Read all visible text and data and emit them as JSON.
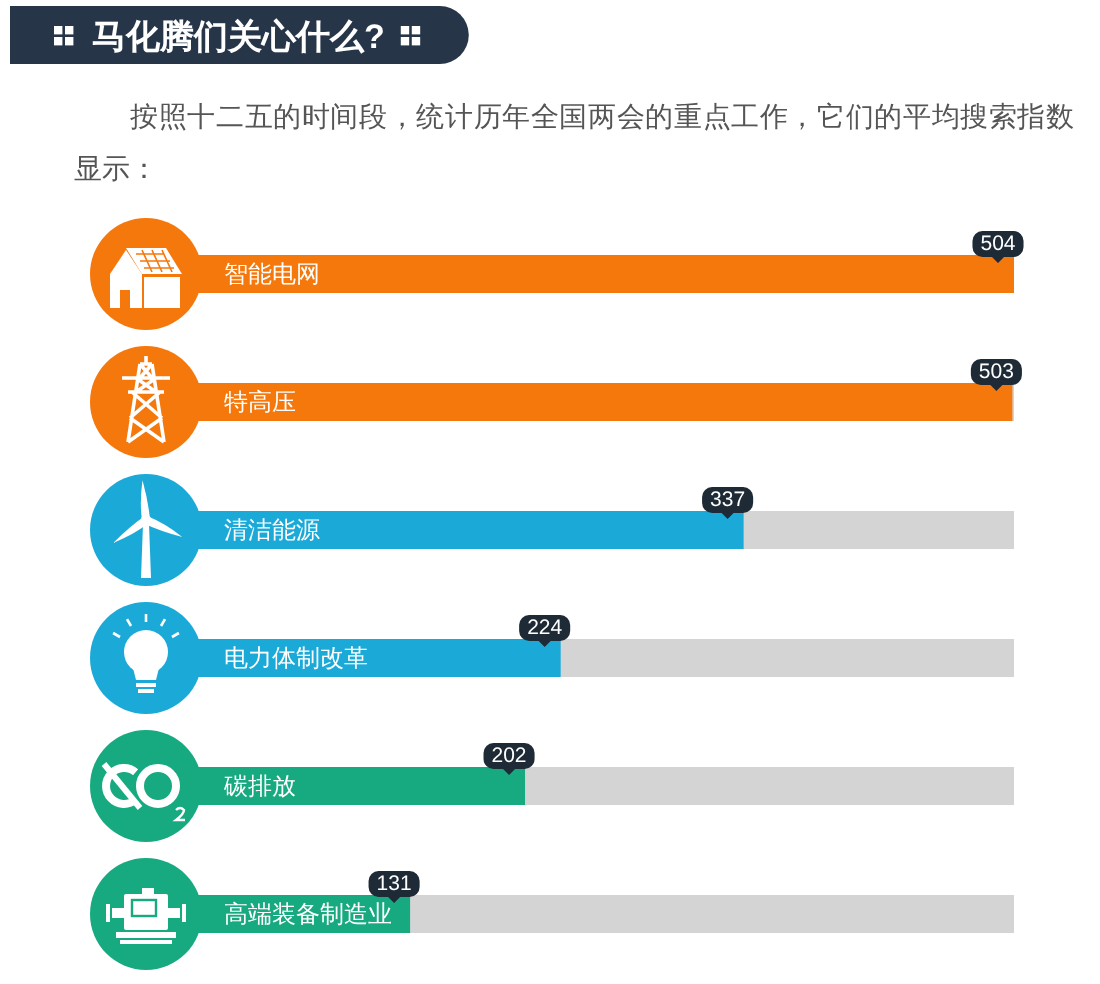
{
  "chart_data": {
    "type": "bar",
    "orientation": "horizontal",
    "title": "马化腾们关心什么?",
    "subtitle": "按照十二五的时间段，统计历年全国两会的重点工作，它们的平均搜索指数显示：",
    "categories": [
      "智能电网",
      "特高压",
      "清洁能源",
      "电力体制改革",
      "碳排放",
      "高端装备制造业"
    ],
    "values": [
      504,
      503,
      337,
      224,
      202,
      131
    ],
    "colors": [
      "#f5780c",
      "#f5780c",
      "#1ba9d8",
      "#1ba9d8",
      "#17a97f",
      "#17a97f"
    ],
    "data_labels": true,
    "tick_labels": "y"
  }
}
